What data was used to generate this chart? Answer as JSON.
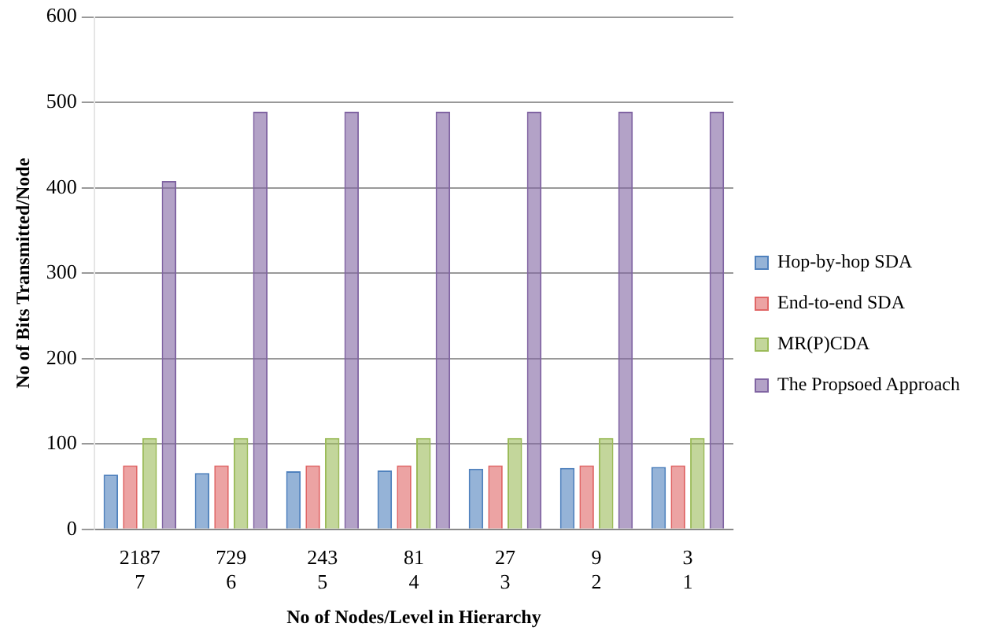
{
  "chart_data": {
    "type": "bar",
    "xlabel": "No of Nodes/Level in Hierarchy",
    "ylabel": "No of Bits Transmitted/Node",
    "categories": [
      "2187\n7",
      "729\n6",
      "243\n5",
      "81\n4",
      "27\n3",
      "9\n2",
      "3\n1"
    ],
    "series": [
      {
        "name": "Hop-by-hop SDA",
        "color": "#4f81bd",
        "values": [
          64,
          66,
          68,
          69,
          71,
          72,
          73
        ]
      },
      {
        "name": "End-to-end SDA",
        "color": "#e06666",
        "values": [
          75,
          75,
          75,
          75,
          75,
          75,
          75
        ]
      },
      {
        "name": "MR(P)CDA",
        "color": "#9bbb59",
        "values": [
          107,
          107,
          107,
          107,
          107,
          107,
          107
        ]
      },
      {
        "name": "The Propsoed Approach",
        "color": "#8064a2",
        "values": [
          408,
          489,
          489,
          489,
          489,
          489,
          489
        ]
      }
    ],
    "ylim": [
      0,
      600
    ],
    "yticks": [
      0,
      100,
      200,
      300,
      400,
      500,
      600
    ],
    "grid": "y",
    "legend": "right"
  }
}
